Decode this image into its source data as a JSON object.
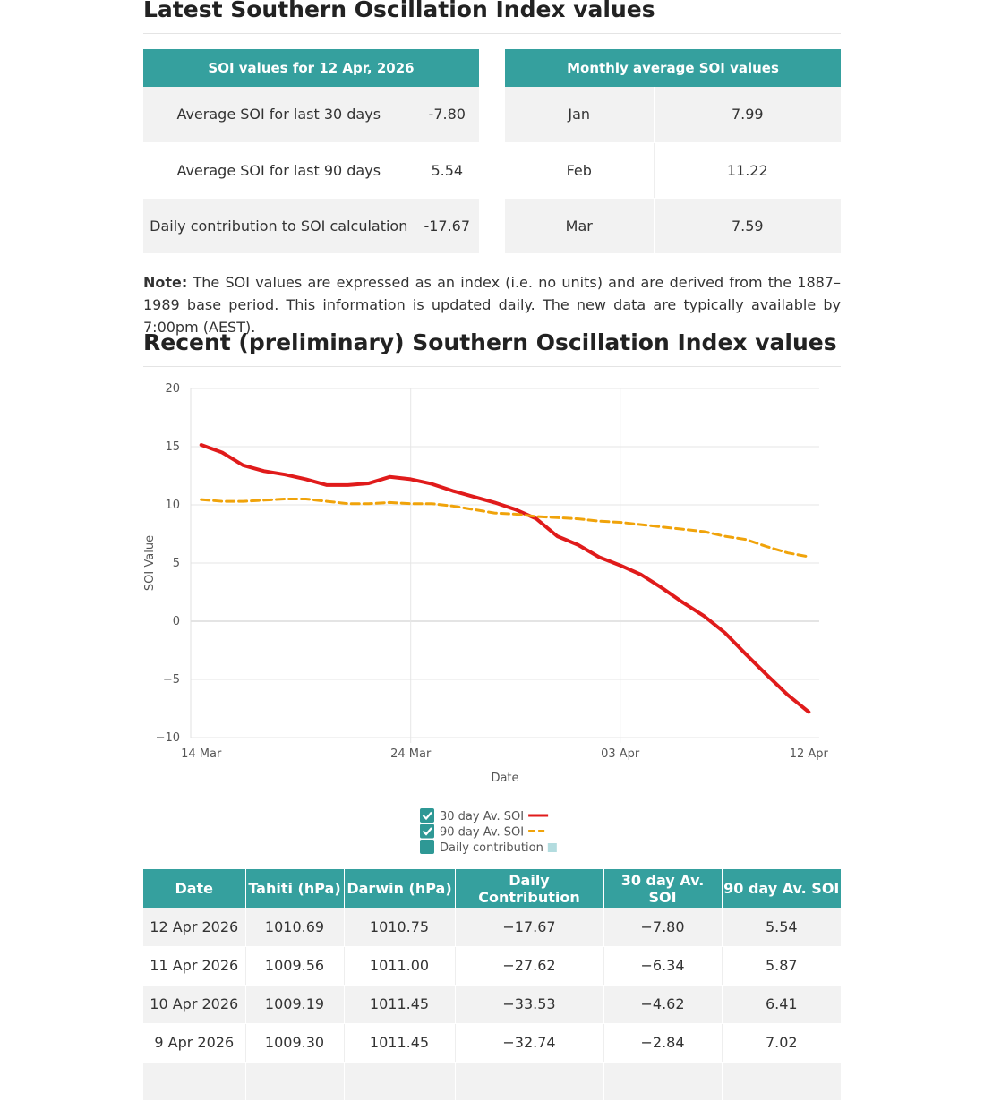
{
  "summary": {
    "title": "Latest Southern Oscillation Index values",
    "current": {
      "header": "SOI values for 12 Apr, 2026",
      "rows": [
        {
          "label": "Average SOI for last 30 days",
          "value": "-7.80"
        },
        {
          "label": "Average SOI for last 90 days",
          "value": "5.54"
        },
        {
          "label": "Daily contribution to SOI calculation",
          "value": "-17.67"
        }
      ]
    },
    "monthly": {
      "header": "Monthly average SOI values",
      "rows": [
        {
          "month": "Jan",
          "value": "7.99"
        },
        {
          "month": "Feb",
          "value": "11.22"
        },
        {
          "month": "Mar",
          "value": "7.59"
        }
      ]
    }
  },
  "note": {
    "label": "Note:",
    "text": "The SOI values are expressed as an index (i.e. no units) and are derived from the 1887–1989 base period. This information is updated daily. The new data are typically available by 7:00pm (AEST)."
  },
  "chart_data": {
    "type": "line",
    "title": "Recent (preliminary) Southern Oscillation Index values",
    "x_label": "Date",
    "y_label": "SOI Value",
    "categories": [
      "14 Mar",
      null,
      null,
      null,
      null,
      null,
      null,
      null,
      null,
      null,
      "24 Mar",
      null,
      null,
      null,
      null,
      null,
      null,
      null,
      null,
      null,
      "03 Apr",
      null,
      null,
      null,
      null,
      null,
      null,
      null,
      null,
      "12 Apr"
    ],
    "series": [
      {
        "name": "30 day Av. SOI",
        "color": "#e01b1b",
        "dashed": false,
        "values": [
          15.15,
          14.5,
          13.4,
          12.9,
          12.6,
          12.2,
          11.7,
          11.7,
          11.85,
          12.4,
          12.2,
          11.8,
          11.2,
          10.7,
          10.2,
          9.6,
          8.8,
          7.3,
          6.55,
          5.5,
          4.8,
          4.0,
          2.85,
          1.6,
          0.45,
          -1.0,
          -2.84,
          -4.62,
          -6.34,
          -7.8
        ]
      },
      {
        "name": "90 day Av. SOI",
        "color": "#f0a30a",
        "dashed": true,
        "values": [
          10.45,
          10.3,
          10.3,
          10.4,
          10.5,
          10.5,
          10.3,
          10.1,
          10.1,
          10.2,
          10.1,
          10.1,
          9.9,
          9.6,
          9.3,
          9.2,
          9.0,
          8.9,
          8.8,
          8.6,
          8.5,
          8.3,
          8.1,
          7.9,
          7.7,
          7.3,
          7.02,
          6.41,
          5.87,
          5.54
        ]
      },
      {
        "name": "Daily contribution",
        "color": "#b3dcdf",
        "visible": false
      }
    ],
    "ylim": [
      -10,
      20
    ],
    "yticks": [
      {
        "value": -10,
        "label": "−10"
      },
      {
        "value": -5,
        "label": "−5"
      },
      0,
      5,
      10,
      15,
      20
    ],
    "grid": true,
    "legend": "bottom"
  },
  "table": {
    "columns": [
      "Date",
      "Tahiti (hPa)",
      "Darwin (hPa)",
      "Daily Contribution",
      "30 day Av. SOI",
      "90 day Av. SOI"
    ],
    "rows": [
      [
        "12 Apr 2026",
        "1010.69",
        "1010.75",
        "−17.67",
        "−7.80",
        "5.54"
      ],
      [
        "11 Apr 2026",
        "1009.56",
        "1011.00",
        "−27.62",
        "−6.34",
        "5.87"
      ],
      [
        "10 Apr 2026",
        "1009.19",
        "1011.45",
        "−33.53",
        "−4.62",
        "6.41"
      ],
      [
        "9 Apr 2026",
        "1009.30",
        "1011.45",
        "−32.74",
        "−2.84",
        "7.02"
      ]
    ]
  }
}
